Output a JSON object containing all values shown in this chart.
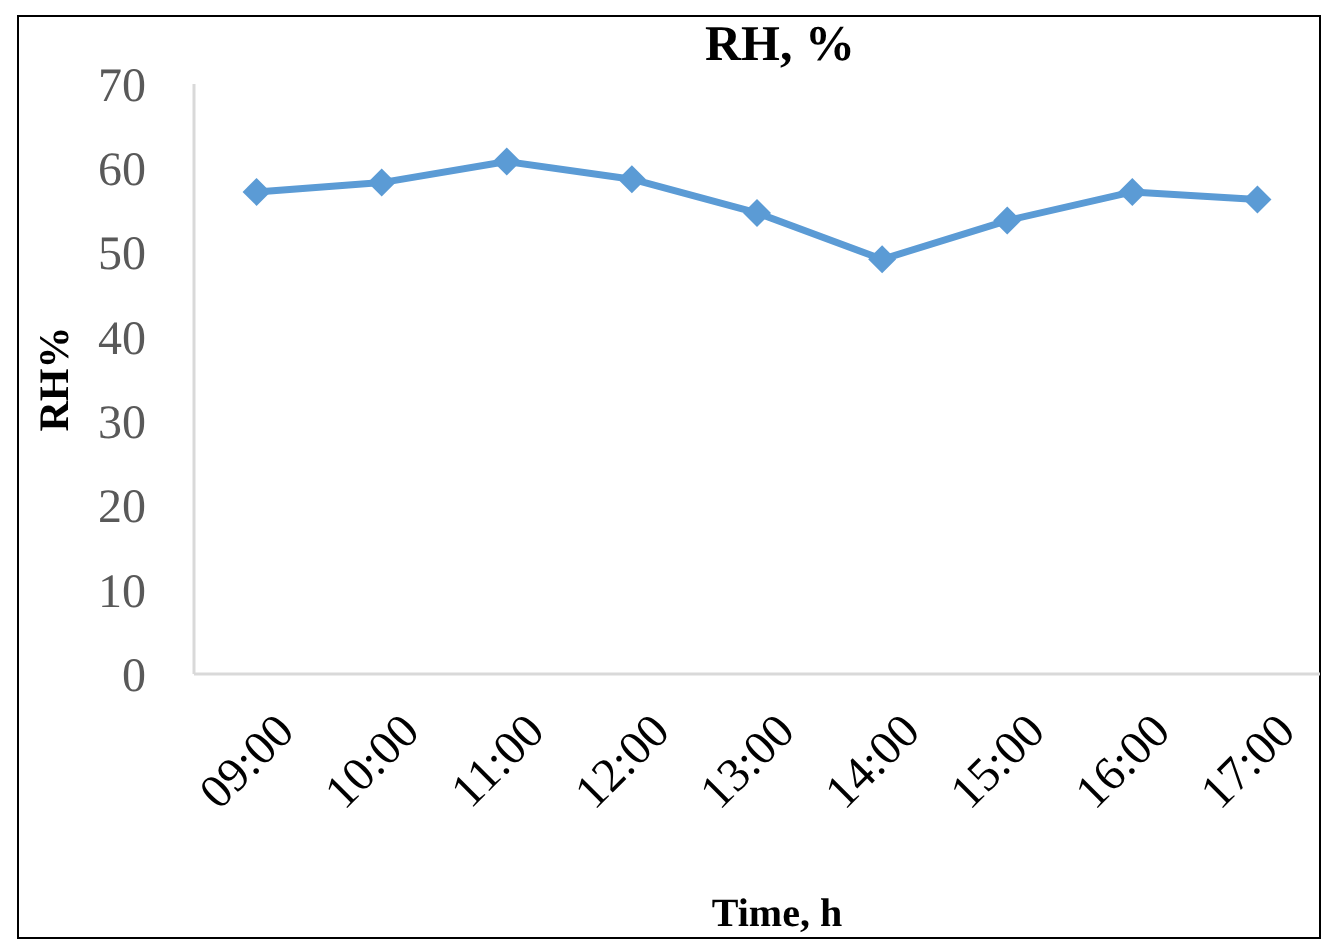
{
  "chart_data": {
    "type": "line",
    "title": "RH, %",
    "xlabel": "Time, h",
    "ylabel": "RH%",
    "categories": [
      "09:00",
      "10:00",
      "11:00",
      "12:00",
      "13:00",
      "14:00",
      "15:00",
      "16:00",
      "17:00"
    ],
    "series": [
      {
        "color": "#5b9bd5",
        "values": [
          57.2,
          58.3,
          60.8,
          58.7,
          54.7,
          49.2,
          53.8,
          57.2,
          56.3
        ]
      }
    ],
    "ylim": [
      0,
      70
    ],
    "yticks": [
      0,
      10,
      20,
      30,
      40,
      50,
      60,
      70
    ],
    "grid": false,
    "marker": "diamond",
    "line_style": "solid"
  }
}
